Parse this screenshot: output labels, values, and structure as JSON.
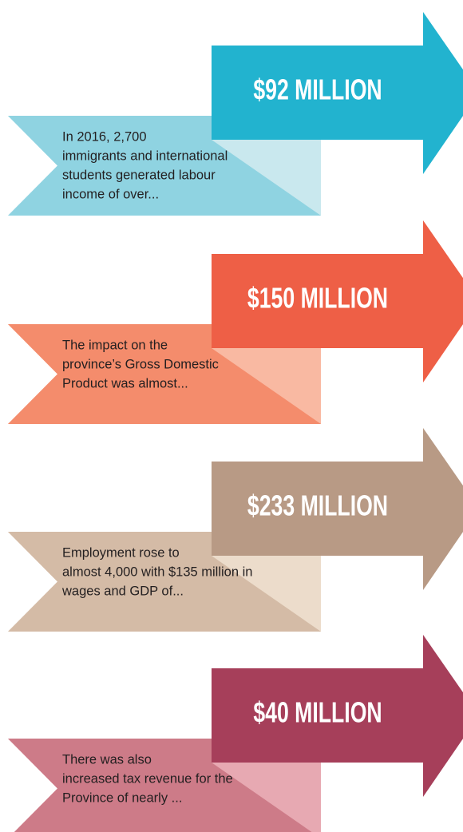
{
  "items": [
    {
      "amount": "$92 MILLION",
      "lines": [
        "In 2016, 2,700",
        "immigrants and international",
        "students generated labour",
        "income of over..."
      ]
    },
    {
      "amount": "$150 MILLION",
      "lines": [
        "The impact on the",
        "province’s Gross Domestic",
        "Product was almost..."
      ]
    },
    {
      "amount": "$233 MILLION",
      "lines": [
        "Employment rose to",
        "almost 4,000 with $135 million in",
        "wages and GDP of..."
      ]
    },
    {
      "amount": "$40 MILLION",
      "lines": [
        "There was also",
        "increased tax revenue for the",
        "Province of nearly ..."
      ]
    }
  ]
}
